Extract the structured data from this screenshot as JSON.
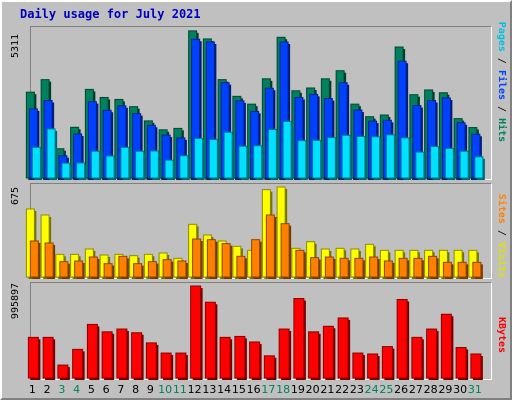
{
  "title": "Daily usage for July 2021",
  "colors": {
    "hits": "#00805c",
    "files": "#0040ff",
    "pages": "#00e0ff",
    "visits": "#ffff00",
    "sites": "#ff8000",
    "kbytes": "#ff0000",
    "title": "#0000c0",
    "weekday_label": "#000000",
    "weekend_label": "#00805c"
  },
  "chart_data": [
    {
      "type": "bar",
      "name": "hits-files-pages",
      "categories": [
        "1",
        "2",
        "3",
        "4",
        "5",
        "6",
        "7",
        "8",
        "9",
        "10",
        "11",
        "12",
        "13",
        "14",
        "15",
        "16",
        "17",
        "18",
        "19",
        "20",
        "21",
        "22",
        "23",
        "24",
        "25",
        "26",
        "27",
        "28",
        "29",
        "30",
        "31"
      ],
      "weekend": [
        3,
        4,
        10,
        11,
        17,
        18,
        24,
        25,
        31
      ],
      "ymax": 5311,
      "ylabel": "5311",
      "legend": [
        "Pages",
        "Files",
        "Hits"
      ],
      "series": [
        {
          "name": "Hits",
          "color_key": "hits",
          "values": [
            3080,
            3530,
            1050,
            1820,
            3180,
            2890,
            2820,
            2560,
            2050,
            1730,
            1780,
            5280,
            4990,
            3530,
            2930,
            2650,
            3560,
            5050,
            3130,
            3230,
            3560,
            3850,
            2650,
            2200,
            2260,
            4700,
            2990,
            3160,
            3060,
            2130,
            1810
          ]
        },
        {
          "name": "Files",
          "color_key": "files",
          "values": [
            2480,
            2780,
            800,
            1580,
            2740,
            2430,
            2590,
            2310,
            1890,
            1540,
            1440,
            4980,
            4880,
            3420,
            2770,
            2390,
            3220,
            4880,
            2890,
            3000,
            2850,
            3420,
            2440,
            2040,
            2070,
            4190,
            2600,
            2780,
            2870,
            1980,
            1570
          ]
        },
        {
          "name": "Pages",
          "color_key": "pages",
          "values": [
            1100,
            1760,
            530,
            540,
            960,
            790,
            1100,
            960,
            970,
            640,
            800,
            1420,
            1380,
            1640,
            1140,
            1160,
            1740,
            2030,
            1340,
            1350,
            1450,
            1530,
            1490,
            1480,
            1550,
            1440,
            930,
            1130,
            1060,
            960,
            760
          ]
        }
      ]
    },
    {
      "type": "bar",
      "name": "visits-sites",
      "categories": [
        "1",
        "2",
        "3",
        "4",
        "5",
        "6",
        "7",
        "8",
        "9",
        "10",
        "11",
        "12",
        "13",
        "14",
        "15",
        "16",
        "17",
        "18",
        "19",
        "20",
        "21",
        "22",
        "23",
        "24",
        "25",
        "26",
        "27",
        "28",
        "29",
        "30",
        "31"
      ],
      "ymax": 675,
      "ylabel": "675",
      "legend": [
        "Sites",
        "Visits"
      ],
      "series": [
        {
          "name": "Visits",
          "color_key": "visits",
          "values": [
            510,
            465,
            170,
            170,
            210,
            165,
            170,
            160,
            170,
            180,
            140,
            395,
            315,
            270,
            230,
            200,
            655,
            675,
            215,
            265,
            210,
            215,
            210,
            245,
            200,
            200,
            200,
            200,
            200,
            200,
            200
          ]
        },
        {
          "name": "Sites",
          "color_key": "sites",
          "values": [
            270,
            255,
            115,
            120,
            150,
            100,
            155,
            100,
            115,
            130,
            120,
            285,
            280,
            250,
            155,
            280,
            465,
            400,
            200,
            145,
            150,
            140,
            140,
            150,
            120,
            140,
            140,
            155,
            110,
            110,
            110
          ]
        }
      ]
    },
    {
      "type": "bar",
      "name": "kbytes",
      "categories": [
        "1",
        "2",
        "3",
        "4",
        "5",
        "6",
        "7",
        "8",
        "9",
        "10",
        "11",
        "12",
        "13",
        "14",
        "15",
        "16",
        "17",
        "18",
        "19",
        "20",
        "21",
        "22",
        "23",
        "24",
        "25",
        "26",
        "27",
        "28",
        "29",
        "30",
        "31"
      ],
      "ymax": 995897,
      "ylabel": "995897",
      "legend": [
        "KBytes"
      ],
      "series": [
        {
          "name": "KBytes",
          "color_key": "kbytes",
          "values": [
            440000,
            440000,
            140000,
            310000,
            580000,
            500000,
            530000,
            490000,
            380000,
            270000,
            270000,
            995897,
            820000,
            440000,
            450000,
            390000,
            240000,
            530000,
            860000,
            500000,
            560000,
            650000,
            270000,
            260000,
            340000,
            850000,
            440000,
            530000,
            690000,
            330000,
            260000
          ]
        }
      ]
    }
  ]
}
